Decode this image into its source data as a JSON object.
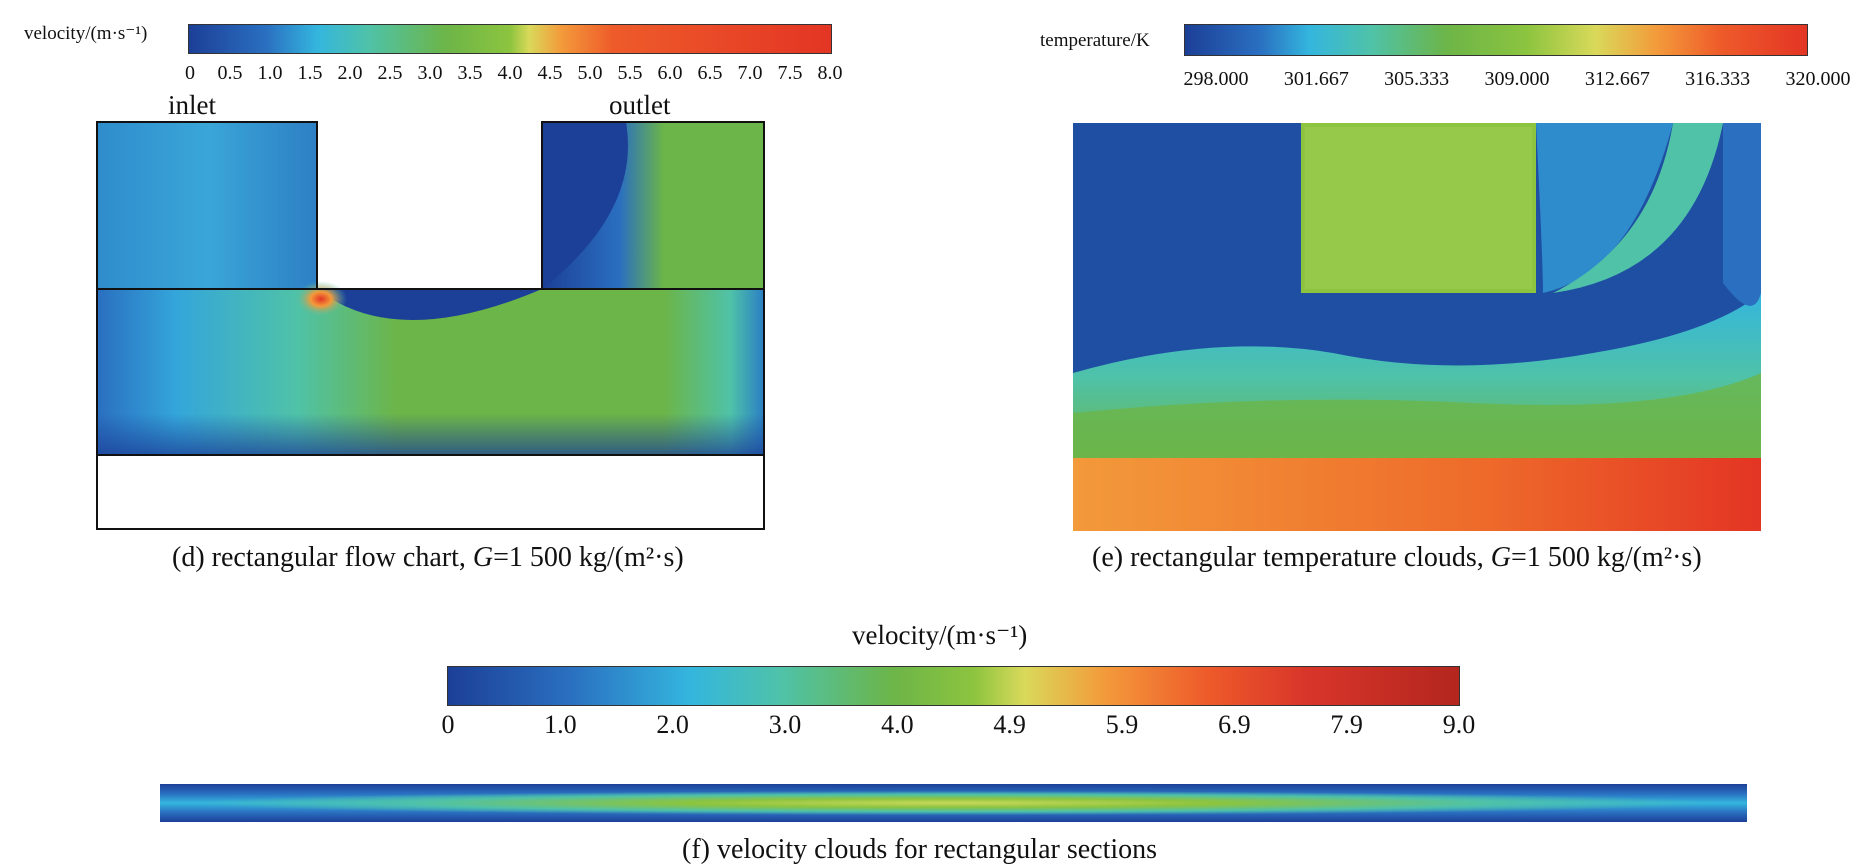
{
  "panel_d": {
    "colorbar_title": "velocity/(m·s⁻¹)",
    "ticks": [
      "0",
      "0.5",
      "1.0",
      "1.5",
      "2.0",
      "2.5",
      "3.0",
      "3.5",
      "4.0",
      "4.5",
      "5.0",
      "5.5",
      "6.0",
      "6.5",
      "7.0",
      "7.5",
      "8.0"
    ],
    "inlet_label": "inlet",
    "outlet_label": "outlet",
    "caption_prefix": "(d) rectangular flow chart, ",
    "caption_var": "G",
    "caption_suffix": "=1 500 kg/(m²·s)"
  },
  "panel_e": {
    "colorbar_title": "temperature/K",
    "ticks": [
      "298.000",
      "301.667",
      "305.333",
      "309.000",
      "312.667",
      "316.333",
      "320.000"
    ],
    "caption_prefix": "(e) rectangular temperature clouds, ",
    "caption_var": "G",
    "caption_suffix": "=1 500 kg/(m²·s)"
  },
  "panel_f": {
    "colorbar_title": "velocity/(m·s⁻¹)",
    "ticks": [
      "0",
      "1.0",
      "2.0",
      "3.0",
      "4.0",
      "4.9",
      "5.9",
      "6.9",
      "7.9",
      "9.0"
    ],
    "caption": "(f) velocity clouds for rectangular sections"
  },
  "colors": {
    "colormap_stops": [
      "#1c3f97",
      "#2a6fc0",
      "#34b6de",
      "#4fc2a8",
      "#6cb548",
      "#8cc43f",
      "#d9d95a",
      "#f39a3b",
      "#ee5b2a",
      "#e33524"
    ],
    "colormap_f_stops": [
      "#1c3f97",
      "#2a6fc0",
      "#34b6de",
      "#4fc2a8",
      "#6cb548",
      "#8cc43f",
      "#d9d95a",
      "#f39a3b",
      "#ee5b2a",
      "#d8352a",
      "#b3261e"
    ]
  }
}
